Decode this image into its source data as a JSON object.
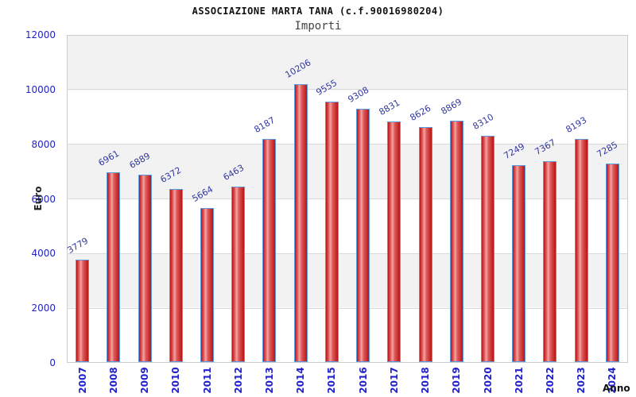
{
  "header": {
    "title": "ASSOCIAZIONE MARTA TANA (c.f.90016980204)",
    "subtitle": "Importi"
  },
  "chart_data": {
    "type": "bar",
    "title": "ASSOCIAZIONE MARTA TANA (c.f.90016980204)",
    "subtitle": "Importi",
    "xlabel": "Anno",
    "ylabel": "Euro",
    "categories": [
      "2007",
      "2008",
      "2009",
      "2010",
      "2011",
      "2012",
      "2013",
      "2014",
      "2015",
      "2016",
      "2017",
      "2018",
      "2019",
      "2020",
      "2021",
      "2022",
      "2023",
      "2024"
    ],
    "values": [
      3779,
      6961,
      6889,
      6372,
      5664,
      6463,
      8187,
      10206,
      9555,
      9308,
      8831,
      8626,
      8869,
      8310,
      7249,
      7367,
      8193,
      7285
    ],
    "ylim": [
      0,
      12000
    ],
    "ytick_step": 2000,
    "yticks": [
      0,
      2000,
      4000,
      6000,
      8000,
      10000,
      12000
    ],
    "grid": "horizontal alternating bands",
    "legend": "none",
    "colors": {
      "bar_fill_dark": "#b81414",
      "bar_fill_mid": "#e05c5c",
      "bar_fill_light": "#f5a3a3",
      "bar_border": "#5b9ce0",
      "axis_tick_text": "#2222cc",
      "value_label_text": "#3339a0",
      "band_gray": "#f2f2f2",
      "gridline": "#d9d9d9",
      "plot_border": "#cccccc"
    }
  }
}
